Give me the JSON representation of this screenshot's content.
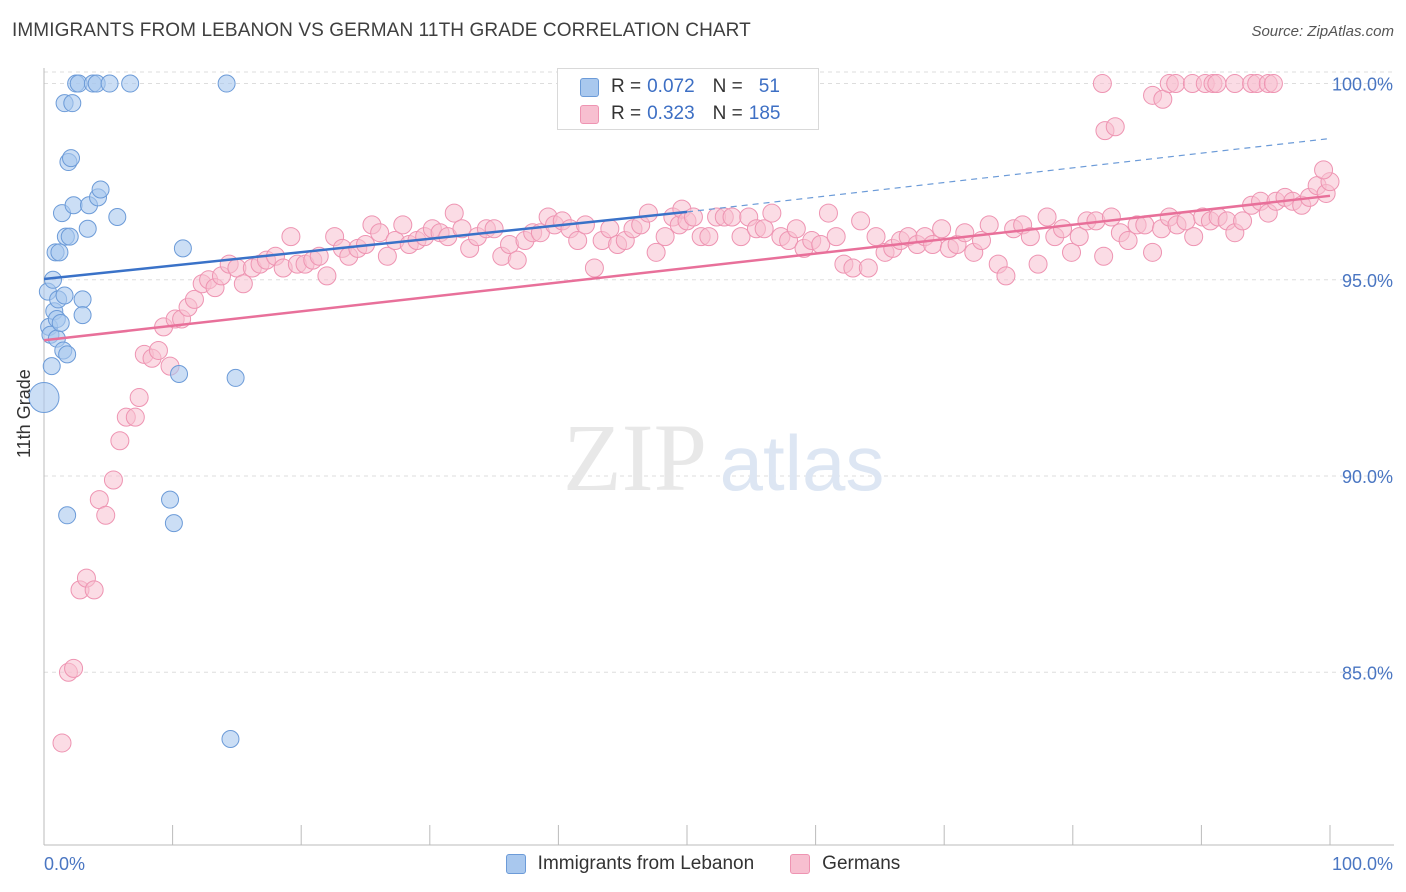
{
  "header": {
    "title": "IMMIGRANTS FROM LEBANON VS GERMAN 11TH GRADE CORRELATION CHART",
    "source": "Source: ZipAtlas.com"
  },
  "watermark": {
    "zip": "ZIP",
    "atlas": "atlas"
  },
  "colors": {
    "blue_fill": "#a9c8ee",
    "blue_stroke": "#6c9bd8",
    "blue_line": "#3a72c8",
    "pink_fill": "#f7bfd0",
    "pink_stroke": "#ee94b2",
    "pink_line": "#e8709a",
    "tick_label": "#4a76c2",
    "grid": "#dddddd"
  },
  "legend": {
    "rows": [
      {
        "r_label": "R =",
        "r_value": "0.072",
        "n_label": "N =",
        "n_value": "51"
      },
      {
        "r_label": "R =",
        "r_value": "0.323",
        "n_label": "N =",
        "n_value": "185"
      }
    ]
  },
  "bottom_legend": {
    "items": [
      {
        "label": "Immigrants from Lebanon"
      },
      {
        "label": "Germans"
      }
    ]
  },
  "chart_data": {
    "type": "scatter",
    "title": "IMMIGRANTS FROM LEBANON VS GERMAN 11TH GRADE CORRELATION CHART",
    "xlabel": "",
    "ylabel": "11th Grade",
    "xlim": [
      0,
      100
    ],
    "ylim": [
      80.6,
      100.6
    ],
    "x_tick_labels": [
      "0.0%",
      "100.0%"
    ],
    "y_ticks": [
      85,
      90,
      95,
      100
    ],
    "y_tick_labels": [
      "85.0%",
      "90.0%",
      "95.0%",
      "100.0%"
    ],
    "grid": true,
    "legend_position": "top-center",
    "series": [
      {
        "name": "Immigrants from Lebanon",
        "color": "blue",
        "r": 0.072,
        "n": 51,
        "trend": {
          "x0": 0,
          "y0": 95.02,
          "x1": 50,
          "y1": 96.73,
          "dashed_to_x": 100,
          "dashed_to_y": 98.6
        },
        "points": [
          [
            0,
            92
          ],
          [
            0.3,
            94.7
          ],
          [
            0.4,
            93.8
          ],
          [
            0.5,
            93.6
          ],
          [
            0.6,
            92.8
          ],
          [
            0.7,
            95
          ],
          [
            0.8,
            94.2
          ],
          [
            0.9,
            95.7
          ],
          [
            1,
            94
          ],
          [
            1,
            93.5
          ],
          [
            1.1,
            94.5
          ],
          [
            1.2,
            95.7
          ],
          [
            1.3,
            93.9
          ],
          [
            1.4,
            96.7
          ],
          [
            1.5,
            93.2
          ],
          [
            1.6,
            94.6
          ],
          [
            1.6,
            99.5
          ],
          [
            1.7,
            96.1
          ],
          [
            1.8,
            93.1
          ],
          [
            1.8,
            89
          ],
          [
            1.9,
            98
          ],
          [
            2,
            96.1
          ],
          [
            2.1,
            98.1
          ],
          [
            2.2,
            99.5
          ],
          [
            2.3,
            96.9
          ],
          [
            2.5,
            100
          ],
          [
            2.7,
            100
          ],
          [
            3,
            94.5
          ],
          [
            3,
            94.1
          ],
          [
            3.4,
            96.3
          ],
          [
            3.5,
            96.9
          ],
          [
            3.8,
            100
          ],
          [
            4.1,
            100
          ],
          [
            4.2,
            97.1
          ],
          [
            4.4,
            97.3
          ],
          [
            5.1,
            100
          ],
          [
            5.7,
            96.6
          ],
          [
            6.7,
            100
          ],
          [
            9.8,
            89.4
          ],
          [
            10.1,
            88.8
          ],
          [
            10.5,
            92.6
          ],
          [
            10.8,
            95.8
          ],
          [
            14.2,
            100
          ],
          [
            14.5,
            83.3
          ],
          [
            14.9,
            92.5
          ]
        ]
      },
      {
        "name": "Germans",
        "color": "pink",
        "r": 0.323,
        "n": 185,
        "trend": {
          "x0": 0,
          "y0": 93.46,
          "x1": 100,
          "y1": 97.14
        },
        "points": [
          [
            1.4,
            83.2
          ],
          [
            1.9,
            85
          ],
          [
            2.3,
            85.1
          ],
          [
            2.8,
            87.1
          ],
          [
            3.3,
            87.4
          ],
          [
            3.9,
            87.1
          ],
          [
            4.3,
            89.4
          ],
          [
            4.8,
            89
          ],
          [
            5.4,
            89.9
          ],
          [
            5.9,
            90.9
          ],
          [
            6.4,
            91.5
          ],
          [
            7.1,
            91.5
          ],
          [
            7.4,
            92
          ],
          [
            7.8,
            93.1
          ],
          [
            8.4,
            93
          ],
          [
            8.9,
            93.2
          ],
          [
            9.3,
            93.8
          ],
          [
            9.8,
            92.8
          ],
          [
            10.2,
            94
          ],
          [
            10.7,
            94
          ],
          [
            11.2,
            94.3
          ],
          [
            11.7,
            94.5
          ],
          [
            12.3,
            94.9
          ],
          [
            12.8,
            95
          ],
          [
            13.3,
            94.8
          ],
          [
            13.8,
            95.1
          ],
          [
            14.4,
            95.4
          ],
          [
            15,
            95.3
          ],
          [
            15.5,
            94.9
          ],
          [
            16.2,
            95.3
          ],
          [
            16.8,
            95.4
          ],
          [
            17.3,
            95.5
          ],
          [
            18,
            95.6
          ],
          [
            18.6,
            95.3
          ],
          [
            19.2,
            96.1
          ],
          [
            19.7,
            95.4
          ],
          [
            20.3,
            95.4
          ],
          [
            20.9,
            95.5
          ],
          [
            21.4,
            95.6
          ],
          [
            22,
            95.1
          ],
          [
            22.6,
            96.1
          ],
          [
            23.2,
            95.8
          ],
          [
            23.7,
            95.6
          ],
          [
            24.4,
            95.8
          ],
          [
            25,
            95.9
          ],
          [
            25.5,
            96.4
          ],
          [
            26.1,
            96.2
          ],
          [
            26.7,
            95.6
          ],
          [
            27.3,
            96
          ],
          [
            27.9,
            96.4
          ],
          [
            28.4,
            95.9
          ],
          [
            29,
            96
          ],
          [
            29.6,
            96.1
          ],
          [
            30.2,
            96.3
          ],
          [
            30.8,
            96.2
          ],
          [
            31.4,
            96.1
          ],
          [
            31.9,
            96.7
          ],
          [
            32.5,
            96.3
          ],
          [
            33.1,
            95.8
          ],
          [
            33.7,
            96.1
          ],
          [
            34.4,
            96.3
          ],
          [
            35,
            96.3
          ],
          [
            35.6,
            95.6
          ],
          [
            36.2,
            95.9
          ],
          [
            36.8,
            95.5
          ],
          [
            37.4,
            96
          ],
          [
            38,
            96.2
          ],
          [
            38.6,
            96.2
          ],
          [
            39.2,
            96.6
          ],
          [
            39.7,
            96.4
          ],
          [
            40.3,
            96.5
          ],
          [
            40.9,
            96.3
          ],
          [
            41.5,
            96
          ],
          [
            42.1,
            96.4
          ],
          [
            42.8,
            95.3
          ],
          [
            43.4,
            96
          ],
          [
            44,
            96.3
          ],
          [
            44.6,
            95.9
          ],
          [
            45.2,
            96
          ],
          [
            45.8,
            96.3
          ],
          [
            46.4,
            96.4
          ],
          [
            47,
            96.7
          ],
          [
            47.6,
            95.7
          ],
          [
            48.3,
            96.1
          ],
          [
            48.9,
            96.6
          ],
          [
            49.4,
            96.4
          ],
          [
            49.6,
            96.8
          ],
          [
            50,
            96.5
          ],
          [
            50.5,
            96.6
          ],
          [
            51.1,
            96.1
          ],
          [
            51.7,
            96.1
          ],
          [
            52.3,
            96.6
          ],
          [
            52.9,
            96.6
          ],
          [
            53.5,
            96.6
          ],
          [
            54.2,
            96.1
          ],
          [
            54.8,
            96.6
          ],
          [
            55.4,
            96.3
          ],
          [
            56,
            96.3
          ],
          [
            56.6,
            96.7
          ],
          [
            57.3,
            96.1
          ],
          [
            57.9,
            96
          ],
          [
            58.5,
            96.3
          ],
          [
            59.1,
            95.8
          ],
          [
            59.7,
            96
          ],
          [
            60.4,
            95.9
          ],
          [
            61,
            96.7
          ],
          [
            61.6,
            96.1
          ],
          [
            62.2,
            95.4
          ],
          [
            62.9,
            95.3
          ],
          [
            63.5,
            96.5
          ],
          [
            64.1,
            95.3
          ],
          [
            64.7,
            96.1
          ],
          [
            65.4,
            95.7
          ],
          [
            66,
            95.8
          ],
          [
            66.6,
            96
          ],
          [
            67.2,
            96.1
          ],
          [
            67.9,
            95.9
          ],
          [
            68.5,
            96.1
          ],
          [
            69.1,
            95.9
          ],
          [
            69.8,
            96.3
          ],
          [
            70.4,
            95.8
          ],
          [
            71,
            95.9
          ],
          [
            71.6,
            96.2
          ],
          [
            72.3,
            95.7
          ],
          [
            72.9,
            96
          ],
          [
            73.5,
            96.4
          ],
          [
            74.2,
            95.4
          ],
          [
            74.8,
            95.1
          ],
          [
            75.4,
            96.3
          ],
          [
            76.1,
            96.4
          ],
          [
            76.7,
            96.1
          ],
          [
            77.3,
            95.4
          ],
          [
            78,
            96.6
          ],
          [
            78.6,
            96.1
          ],
          [
            79.2,
            96.3
          ],
          [
            79.9,
            95.7
          ],
          [
            80.5,
            96.1
          ],
          [
            81.1,
            96.5
          ],
          [
            81.8,
            96.5
          ],
          [
            82.4,
            95.6
          ],
          [
            83,
            96.6
          ],
          [
            83.7,
            96.2
          ],
          [
            84.3,
            96
          ],
          [
            85,
            96.4
          ],
          [
            85.6,
            96.4
          ],
          [
            86.2,
            95.7
          ],
          [
            86.9,
            96.3
          ],
          [
            87.5,
            96.6
          ],
          [
            88.1,
            96.4
          ],
          [
            88.8,
            96.5
          ],
          [
            89.4,
            96.1
          ],
          [
            90.1,
            96.6
          ],
          [
            90.7,
            96.5
          ],
          [
            91.3,
            96.6
          ],
          [
            92,
            96.5
          ],
          [
            92.6,
            96.2
          ],
          [
            93.2,
            96.5
          ],
          [
            93.9,
            96.9
          ],
          [
            94.6,
            97
          ],
          [
            95.2,
            96.7
          ],
          [
            95.8,
            97
          ],
          [
            96.5,
            97.1
          ],
          [
            97.1,
            97
          ],
          [
            97.8,
            96.9
          ],
          [
            98.4,
            97.1
          ],
          [
            99,
            97.4
          ],
          [
            99.7,
            97.2
          ],
          [
            100,
            97.5
          ],
          [
            82.3,
            100
          ],
          [
            82.5,
            98.8
          ],
          [
            83.3,
            98.9
          ],
          [
            86.2,
            99.7
          ],
          [
            87,
            99.6
          ],
          [
            87.5,
            100
          ],
          [
            88,
            100
          ],
          [
            89.3,
            100
          ],
          [
            90.3,
            100
          ],
          [
            90.9,
            100
          ],
          [
            91.2,
            100
          ],
          [
            92.6,
            100
          ],
          [
            93.9,
            100
          ],
          [
            94.3,
            100
          ],
          [
            95.2,
            100
          ],
          [
            95.6,
            100
          ],
          [
            99.5,
            97.8
          ]
        ]
      }
    ]
  }
}
